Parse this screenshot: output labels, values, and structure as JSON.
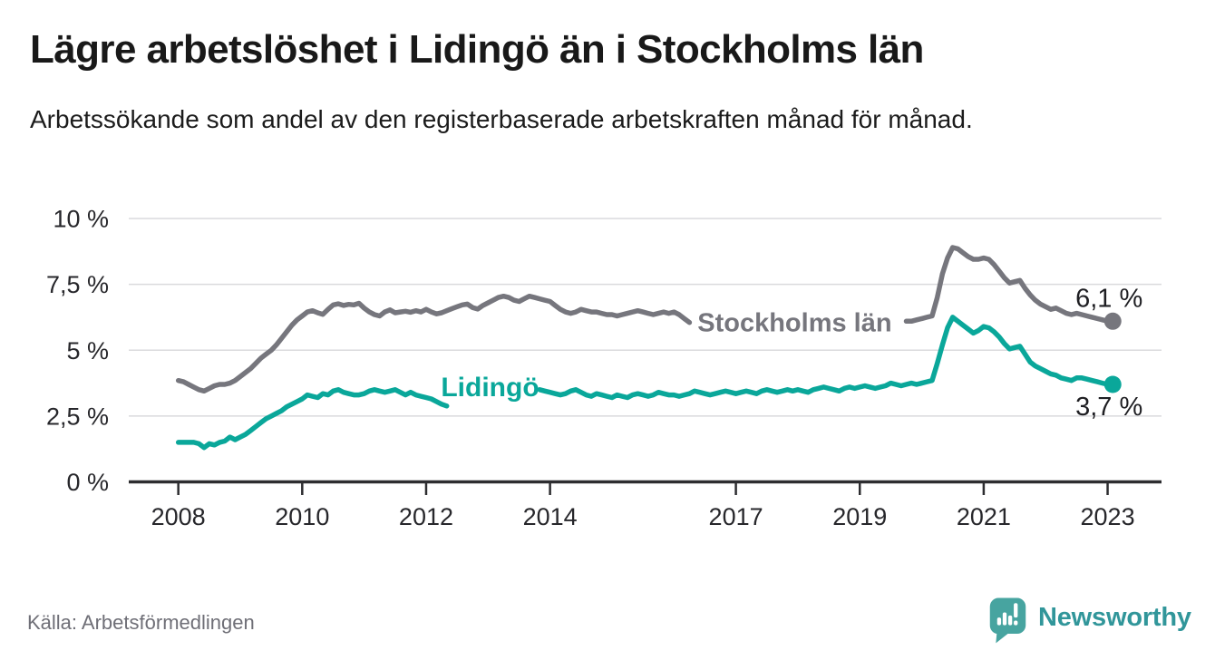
{
  "header": {
    "title": "Lägre arbetslöshet i Lidingö än i Stockholms län",
    "subtitle": "Arbetssökande som andel av den registerbaserade arbetskraften månad för månad."
  },
  "footer": {
    "source": "Källa: Arbetsförmedlingen",
    "brand_name": "Newsworthy",
    "brand_color": "#31969a",
    "brand_icon": "speech-bubble-bar-chart-icon",
    "brand_icon_color": "#47a4a0"
  },
  "chart_data": {
    "type": "line",
    "title": "Lägre arbetslöshet i Lidingö än i Stockholms län",
    "subtitle": "Arbetssökande som andel av den registerbaserade arbetskraften månad för månad.",
    "xlabel": "",
    "ylabel": "",
    "grid": true,
    "legend_position": "inline-on-line",
    "xlim": [
      2007.2,
      2023.87
    ],
    "ylim": [
      0,
      10
    ],
    "x_start": {
      "year": 2008,
      "month": 1,
      "frequency": "monthly"
    },
    "x_ticks": [
      {
        "label": "2008",
        "year": 2008
      },
      {
        "label": "2010",
        "year": 2010
      },
      {
        "label": "2012",
        "year": 2012
      },
      {
        "label": "2014",
        "year": 2014
      },
      {
        "label": "2017",
        "year": 2017
      },
      {
        "label": "2019",
        "year": 2019
      },
      {
        "label": "2021",
        "year": 2021
      },
      {
        "label": "2023",
        "year": 2023
      }
    ],
    "y_ticks": [
      {
        "label": "0 %",
        "value": 0
      },
      {
        "label": "2,5 %",
        "value": 2.5
      },
      {
        "label": "5 %",
        "value": 5
      },
      {
        "label": "7,5 %",
        "value": 7.5
      },
      {
        "label": "10 %",
        "value": 10
      }
    ],
    "series": [
      {
        "name": "Stockholms län",
        "color": "#76767d",
        "end_value": 6.1,
        "line_label": {
          "text": "Stockholms län",
          "t": 2016.38,
          "v": 6.05,
          "size": 29
        },
        "end_label": {
          "text": "6,1 %",
          "dx": 33,
          "dy": -16
        },
        "values": [
          3.85,
          3.8,
          3.7,
          3.6,
          3.5,
          3.45,
          3.55,
          3.65,
          3.7,
          3.7,
          3.75,
          3.85,
          4.0,
          4.15,
          4.3,
          4.5,
          4.7,
          4.85,
          5.0,
          5.2,
          5.45,
          5.7,
          5.95,
          6.15,
          6.3,
          6.45,
          6.5,
          6.42,
          6.36,
          6.55,
          6.72,
          6.76,
          6.7,
          6.74,
          6.72,
          6.78,
          6.6,
          6.45,
          6.35,
          6.3,
          6.45,
          6.53,
          6.42,
          6.45,
          6.48,
          6.44,
          6.5,
          6.45,
          6.55,
          6.45,
          6.38,
          6.42,
          6.5,
          6.58,
          6.65,
          6.72,
          6.75,
          6.62,
          6.56,
          6.7,
          6.8,
          6.9,
          7.0,
          7.05,
          7.0,
          6.9,
          6.85,
          6.95,
          7.05,
          7.0,
          6.95,
          6.9,
          6.85,
          6.7,
          6.55,
          6.45,
          6.4,
          6.45,
          6.55,
          6.5,
          6.45,
          6.45,
          6.4,
          6.35,
          6.35,
          6.3,
          6.35,
          6.4,
          6.45,
          6.5,
          6.45,
          6.4,
          6.35,
          6.4,
          6.45,
          6.4,
          6.45,
          6.35,
          6.2,
          6.05,
          null,
          null,
          null,
          null,
          null,
          null,
          null,
          null,
          null,
          null,
          null,
          null,
          null,
          null,
          null,
          null,
          null,
          null,
          null,
          null,
          null,
          null,
          null,
          null,
          null,
          null,
          null,
          null,
          null,
          null,
          null,
          null,
          null,
          null,
          null,
          null,
          null,
          null,
          null,
          null,
          null,
          6.1,
          6.1,
          6.15,
          6.2,
          6.25,
          6.3,
          7.0,
          7.9,
          8.5,
          8.9,
          8.85,
          8.7,
          8.55,
          8.45,
          8.45,
          8.5,
          8.45,
          8.25,
          8.0,
          7.75,
          7.55,
          7.6,
          7.65,
          7.35,
          7.1,
          6.9,
          6.75,
          6.65,
          6.55,
          6.6,
          6.5,
          6.4,
          6.35,
          6.4,
          6.35,
          6.3,
          6.25,
          6.2,
          6.15,
          6.1,
          6.1
        ]
      },
      {
        "name": "Lidingö",
        "color": "#0aa79a",
        "end_value": 3.7,
        "line_label": {
          "text": "Lidingö",
          "t": 2012.24,
          "v": 3.6,
          "size": 30
        },
        "end_label": {
          "text": "3,7 %",
          "dx": 33,
          "dy": 34
        },
        "values": [
          1.5,
          1.5,
          1.5,
          1.5,
          1.45,
          1.3,
          1.45,
          1.4,
          1.5,
          1.55,
          1.7,
          1.6,
          1.7,
          1.8,
          1.95,
          2.1,
          2.25,
          2.4,
          2.5,
          2.6,
          2.7,
          2.85,
          2.95,
          3.05,
          3.15,
          3.3,
          3.25,
          3.2,
          3.35,
          3.3,
          3.45,
          3.5,
          3.4,
          3.35,
          3.3,
          3.3,
          3.35,
          3.45,
          3.5,
          3.45,
          3.4,
          3.45,
          3.5,
          3.4,
          3.3,
          3.4,
          3.3,
          3.25,
          3.2,
          3.15,
          3.05,
          2.95,
          2.88,
          null,
          null,
          null,
          null,
          null,
          null,
          null,
          null,
          null,
          null,
          null,
          null,
          null,
          null,
          null,
          null,
          null,
          3.5,
          3.45,
          3.4,
          3.35,
          3.3,
          3.35,
          3.45,
          3.5,
          3.4,
          3.3,
          3.25,
          3.35,
          3.3,
          3.25,
          3.2,
          3.3,
          3.25,
          3.2,
          3.3,
          3.35,
          3.3,
          3.25,
          3.3,
          3.4,
          3.35,
          3.3,
          3.3,
          3.25,
          3.3,
          3.35,
          3.45,
          3.4,
          3.35,
          3.3,
          3.35,
          3.4,
          3.45,
          3.4,
          3.35,
          3.4,
          3.45,
          3.4,
          3.35,
          3.45,
          3.5,
          3.45,
          3.4,
          3.45,
          3.5,
          3.45,
          3.5,
          3.45,
          3.4,
          3.5,
          3.55,
          3.6,
          3.55,
          3.5,
          3.45,
          3.55,
          3.6,
          3.55,
          3.6,
          3.65,
          3.6,
          3.55,
          3.6,
          3.65,
          3.75,
          3.7,
          3.65,
          3.7,
          3.75,
          3.7,
          3.75,
          3.8,
          3.85,
          4.5,
          5.2,
          5.85,
          6.25,
          6.1,
          5.95,
          5.8,
          5.65,
          5.75,
          5.9,
          5.85,
          5.7,
          5.5,
          5.25,
          5.05,
          5.1,
          5.15,
          4.85,
          4.55,
          4.4,
          4.3,
          4.2,
          4.1,
          4.05,
          3.95,
          3.9,
          3.85,
          3.95,
          3.95,
          3.9,
          3.85,
          3.8,
          3.75,
          3.7,
          3.7
        ]
      }
    ]
  }
}
